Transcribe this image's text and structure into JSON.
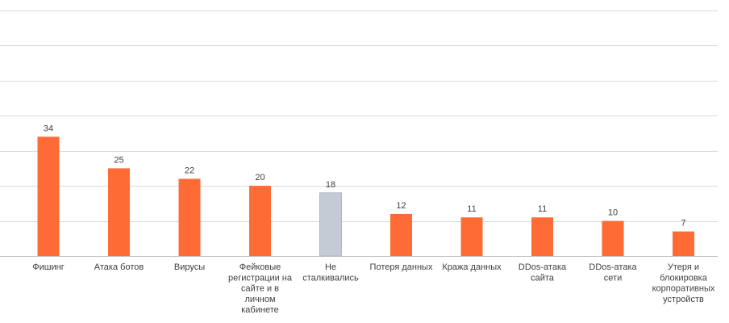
{
  "chart_data": {
    "type": "bar",
    "categories": [
      [
        "Фишинг"
      ],
      [
        "Атака ботов"
      ],
      [
        "Вирусы"
      ],
      [
        "Фейковые",
        "регистрации на",
        "сайте и в",
        "личном",
        "кабинете"
      ],
      [
        "Не",
        "сталкивались"
      ],
      [
        "Потеря данных"
      ],
      [
        "Кража данных"
      ],
      [
        "DDos-атака",
        "сайта"
      ],
      [
        "DDos-атака",
        "сети"
      ],
      [
        "Утеря и",
        "блокировка",
        "корпоративных",
        "устройств"
      ]
    ],
    "values": [
      34,
      25,
      22,
      20,
      18,
      12,
      11,
      11,
      10,
      7
    ],
    "value_labels": [
      "34",
      "25",
      "22",
      "20",
      "18",
      "12",
      "11",
      "11",
      "10",
      "7"
    ],
    "ylim": [
      0,
      70
    ],
    "gridline_step": 10,
    "grid": true,
    "legend": "none",
    "colors": {
      "default": "#ff6b35",
      "highlight": "#c4cbd4",
      "highlight_border": "#aeb6c0",
      "grid": "#d9d9d9"
    },
    "highlight_index": 4
  }
}
